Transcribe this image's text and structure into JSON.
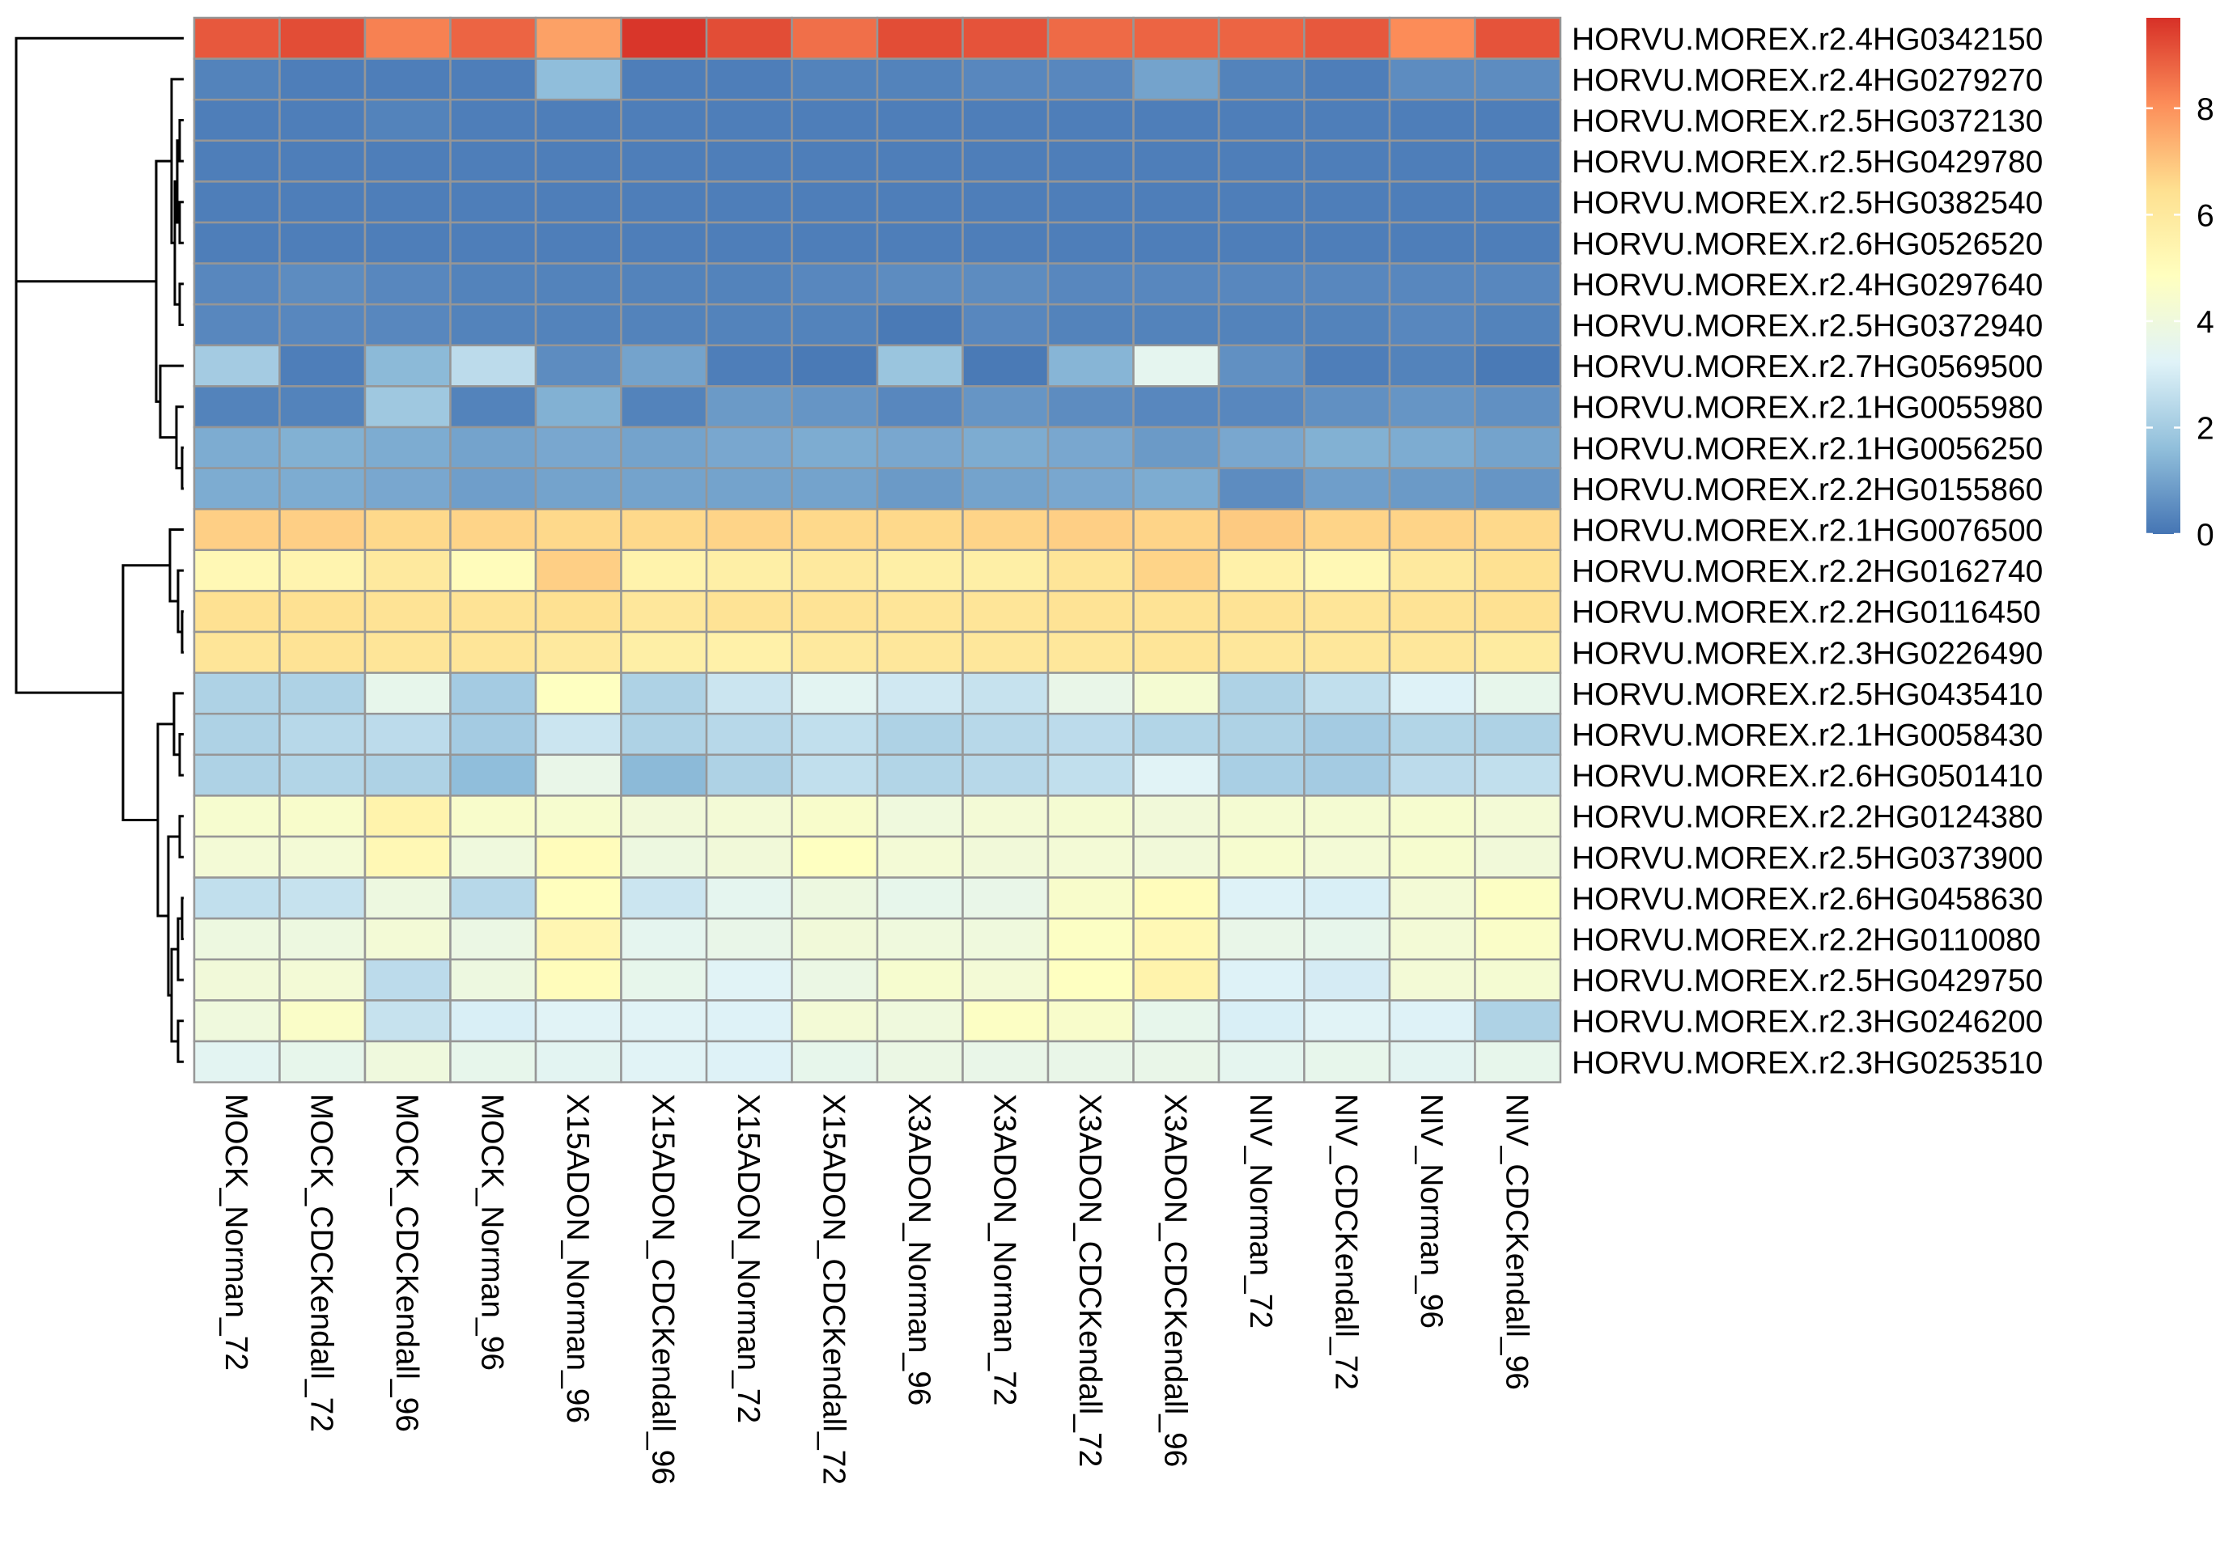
{
  "chart_data": {
    "type": "heatmap",
    "title": "",
    "xlabel": "",
    "ylabel": "",
    "columns": [
      "MOCK_Norman_72",
      "MOCK_CDCKendall_72",
      "MOCK_CDCKendall_96",
      "MOCK_Norman_96",
      "X15ADON_Norman_96",
      "X15ADON_CDCKendall_96",
      "X15ADON_Norman_72",
      "X15ADON_CDCKendall_72",
      "X3ADON_Norman_96",
      "X3ADON_Norman_72",
      "X3ADON_CDCKendall_72",
      "X3ADON_CDCKendall_96",
      "NIV_Norman_72",
      "NIV_CDCKendall_72",
      "NIV_Norman_96",
      "NIV_CDCKendall_96"
    ],
    "rows": [
      "HORVU.MOREX.r2.4HG0342150",
      "HORVU.MOREX.r2.4HG0279270",
      "HORVU.MOREX.r2.5HG0372130",
      "HORVU.MOREX.r2.5HG0429780",
      "HORVU.MOREX.r2.5HG0382540",
      "HORVU.MOREX.r2.6HG0526520",
      "HORVU.MOREX.r2.4HG0297640",
      "HORVU.MOREX.r2.5HG0372940",
      "HORVU.MOREX.r2.7HG0569500",
      "HORVU.MOREX.r2.1HG0055980",
      "HORVU.MOREX.r2.1HG0056250",
      "HORVU.MOREX.r2.2HG0155860",
      "HORVU.MOREX.r2.1HG0076500",
      "HORVU.MOREX.r2.2HG0162740",
      "HORVU.MOREX.r2.2HG0116450",
      "HORVU.MOREX.r2.3HG0226490",
      "HORVU.MOREX.r2.5HG0435410",
      "HORVU.MOREX.r2.1HG0058430",
      "HORVU.MOREX.r2.6HG0501410",
      "HORVU.MOREX.r2.2HG0124380",
      "HORVU.MOREX.r2.5HG0373900",
      "HORVU.MOREX.r2.6HG0458630",
      "HORVU.MOREX.r2.2HG0110080",
      "HORVU.MOREX.r2.5HG0429750",
      "HORVU.MOREX.r2.3HG0246200",
      "HORVU.MOREX.r2.3HG0253510"
    ],
    "values": [
      [
        9.0,
        9.2,
        8.3,
        8.8,
        7.7,
        9.6,
        9.2,
        8.6,
        9.2,
        9.1,
        8.7,
        8.8,
        8.8,
        9.0,
        8.1,
        9.1
      ],
      [
        0.3,
        0.2,
        0.2,
        0.2,
        1.6,
        0.2,
        0.2,
        0.3,
        0.3,
        0.4,
        0.4,
        1.0,
        0.3,
        0.2,
        0.5,
        0.5
      ],
      [
        0.2,
        0.2,
        0.3,
        0.2,
        0.2,
        0.2,
        0.2,
        0.2,
        0.2,
        0.2,
        0.2,
        0.2,
        0.2,
        0.2,
        0.2,
        0.2
      ],
      [
        0.2,
        0.2,
        0.2,
        0.2,
        0.2,
        0.2,
        0.2,
        0.2,
        0.2,
        0.2,
        0.2,
        0.2,
        0.2,
        0.2,
        0.2,
        0.2
      ],
      [
        0.2,
        0.2,
        0.2,
        0.2,
        0.2,
        0.2,
        0.2,
        0.2,
        0.2,
        0.2,
        0.2,
        0.2,
        0.2,
        0.2,
        0.2,
        0.2
      ],
      [
        0.2,
        0.2,
        0.2,
        0.2,
        0.2,
        0.2,
        0.2,
        0.2,
        0.2,
        0.2,
        0.2,
        0.2,
        0.2,
        0.2,
        0.2,
        0.2
      ],
      [
        0.4,
        0.5,
        0.4,
        0.3,
        0.3,
        0.3,
        0.3,
        0.4,
        0.5,
        0.5,
        0.4,
        0.4,
        0.4,
        0.4,
        0.4,
        0.4
      ],
      [
        0.4,
        0.4,
        0.4,
        0.3,
        0.3,
        0.3,
        0.3,
        0.3,
        0.1,
        0.4,
        0.3,
        0.3,
        0.3,
        0.3,
        0.4,
        0.3
      ],
      [
        2.0,
        0.2,
        1.5,
        2.5,
        0.5,
        1.0,
        0.2,
        0.1,
        1.8,
        0.1,
        1.4,
        3.5,
        0.6,
        0.2,
        0.3,
        0.1
      ],
      [
        0.3,
        0.3,
        1.9,
        0.3,
        1.3,
        0.3,
        0.8,
        0.7,
        0.4,
        0.7,
        0.5,
        0.4,
        0.4,
        0.6,
        0.7,
        0.6
      ],
      [
        1.2,
        1.3,
        1.2,
        1.0,
        1.1,
        1.0,
        1.1,
        1.2,
        1.1,
        1.2,
        1.1,
        0.8,
        1.1,
        1.3,
        1.2,
        1.0
      ],
      [
        1.2,
        1.2,
        1.1,
        0.9,
        1.0,
        1.0,
        1.0,
        1.0,
        0.8,
        1.0,
        1.1,
        1.2,
        0.5,
        0.9,
        0.8,
        0.7
      ],
      [
        6.8,
        6.8,
        6.6,
        6.7,
        6.6,
        6.6,
        6.7,
        6.6,
        6.6,
        6.7,
        6.8,
        6.7,
        6.9,
        6.7,
        6.7,
        6.6
      ],
      [
        5.2,
        5.4,
        6.0,
        5.0,
        6.8,
        5.5,
        5.7,
        6.0,
        5.7,
        5.7,
        6.2,
        6.7,
        5.6,
        5.2,
        6.0,
        6.4
      ],
      [
        6.4,
        6.4,
        6.3,
        6.3,
        6.4,
        6.1,
        6.3,
        6.3,
        6.2,
        6.2,
        6.3,
        6.3,
        6.3,
        6.2,
        6.3,
        6.4
      ],
      [
        6.2,
        6.3,
        6.2,
        6.2,
        6.0,
        5.7,
        5.6,
        6.0,
        6.1,
        6.1,
        6.1,
        6.2,
        6.1,
        6.1,
        6.1,
        5.9
      ],
      [
        2.2,
        2.2,
        3.6,
        2.0,
        4.8,
        2.2,
        2.8,
        3.4,
        2.9,
        2.7,
        3.7,
        4.3,
        2.2,
        2.6,
        3.2,
        3.6
      ],
      [
        2.2,
        2.4,
        2.5,
        2.0,
        2.8,
        2.2,
        2.4,
        2.6,
        2.2,
        2.4,
        2.5,
        2.3,
        2.2,
        2.0,
        2.3,
        2.2
      ],
      [
        2.2,
        2.3,
        2.2,
        1.6,
        3.7,
        1.5,
        2.2,
        2.6,
        2.3,
        2.4,
        2.6,
        3.3,
        2.1,
        2.0,
        2.5,
        2.6
      ],
      [
        4.4,
        4.5,
        5.5,
        4.5,
        4.4,
        4.1,
        4.2,
        4.5,
        4.0,
        4.2,
        4.3,
        4.1,
        4.3,
        4.3,
        4.4,
        4.2
      ],
      [
        4.2,
        4.2,
        5.2,
        4.0,
        5.0,
        3.9,
        4.1,
        4.8,
        4.2,
        4.1,
        4.2,
        4.1,
        4.4,
        4.2,
        4.4,
        4.1
      ],
      [
        2.6,
        2.7,
        3.9,
        2.4,
        4.9,
        2.8,
        3.5,
        3.9,
        3.6,
        3.7,
        4.5,
        5.0,
        3.2,
        3.1,
        4.2,
        4.7
      ],
      [
        3.9,
        3.9,
        4.2,
        3.8,
        5.3,
        3.5,
        3.7,
        4.1,
        4.0,
        4.0,
        4.7,
        5.2,
        3.7,
        3.6,
        4.2,
        4.6
      ],
      [
        4.1,
        4.2,
        2.5,
        3.9,
        5.0,
        3.6,
        3.3,
        3.8,
        4.4,
        4.2,
        4.8,
        5.5,
        3.2,
        3.0,
        4.2,
        4.3
      ],
      [
        4.0,
        4.6,
        2.7,
        3.1,
        3.3,
        3.3,
        3.2,
        4.2,
        4.0,
        4.7,
        4.5,
        3.6,
        3.1,
        3.3,
        3.2,
        2.2
      ],
      [
        3.4,
        3.6,
        4.0,
        3.6,
        3.4,
        3.3,
        3.2,
        3.6,
        3.8,
        3.7,
        3.7,
        3.7,
        3.5,
        3.6,
        3.4,
        3.6
      ]
    ],
    "colorbar": {
      "min": 0,
      "max": 9.7,
      "ticks": [
        0,
        2,
        4,
        6,
        8
      ]
    },
    "palette": [
      "#4575B4",
      "#91BFDB",
      "#E0F3F8",
      "#FFFFBF",
      "#FEE090",
      "#FC8D59",
      "#D73027"
    ],
    "cell_border_color": "#969696",
    "row_dendrogram": true,
    "column_dendrogram": false,
    "grid": false,
    "legend_position": "right"
  }
}
